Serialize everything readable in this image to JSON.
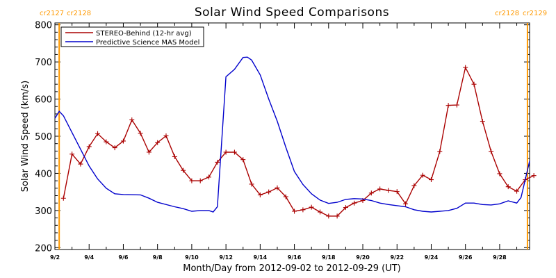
{
  "chart_data": {
    "type": "line",
    "title": "Solar Wind Speed Comparisons",
    "xlabel": "Month/Day from 2012-09-02 to 2012-09-29 (UT)",
    "ylabel": "Solar Wind Speed (km/s)",
    "xlim": [
      "2012-09-02T00:00",
      "2012-09-29T18:00"
    ],
    "ylim": [
      195,
      805
    ],
    "y_ticks": [
      200,
      300,
      400,
      500,
      600,
      700,
      800
    ],
    "x_ticks": [
      {
        "date": "2012-09-02",
        "label": "9/2"
      },
      {
        "date": "2012-09-04",
        "label": "9/4"
      },
      {
        "date": "2012-09-06",
        "label": "9/6"
      },
      {
        "date": "2012-09-08",
        "label": "9/8"
      },
      {
        "date": "2012-09-10",
        "label": "9/10"
      },
      {
        "date": "2012-09-12",
        "label": "9/12"
      },
      {
        "date": "2012-09-14",
        "label": "9/14"
      },
      {
        "date": "2012-09-16",
        "label": "9/16"
      },
      {
        "date": "2012-09-18",
        "label": "9/18"
      },
      {
        "date": "2012-09-20",
        "label": "9/20"
      },
      {
        "date": "2012-09-22",
        "label": "9/22"
      },
      {
        "date": "2012-09-24",
        "label": "9/24"
      },
      {
        "date": "2012-09-26",
        "label": "9/26"
      },
      {
        "date": "2012-09-28",
        "label": "9/28"
      }
    ],
    "grid": false,
    "legend_position": "top-left",
    "carrington_markers": [
      {
        "date": "2012-09-02T06:00",
        "left_label": "cr2127",
        "right_label": "cr2128",
        "color": "#ff9900",
        "label_side": "top-left"
      },
      {
        "date": "2012-09-29T15:00",
        "left_label": "cr2128",
        "right_label": "cr2129",
        "color": "#ff9900",
        "label_side": "top-right"
      }
    ],
    "series": [
      {
        "name": "STEREO-Behind (12-hr avg)",
        "color": "#aa0000",
        "marker": "+",
        "x": [
          "2012-09-02T12:00",
          "2012-09-03T00:00",
          "2012-09-03T12:00",
          "2012-09-04T00:00",
          "2012-09-04T12:00",
          "2012-09-05T00:00",
          "2012-09-05T12:00",
          "2012-09-06T00:00",
          "2012-09-06T12:00",
          "2012-09-07T00:00",
          "2012-09-07T12:00",
          "2012-09-08T00:00",
          "2012-09-08T12:00",
          "2012-09-09T00:00",
          "2012-09-09T12:00",
          "2012-09-10T00:00",
          "2012-09-10T12:00",
          "2012-09-11T00:00",
          "2012-09-11T12:00",
          "2012-09-12T00:00",
          "2012-09-12T12:00",
          "2012-09-13T00:00",
          "2012-09-13T12:00",
          "2012-09-14T00:00",
          "2012-09-14T12:00",
          "2012-09-15T00:00",
          "2012-09-15T12:00",
          "2012-09-16T00:00",
          "2012-09-16T12:00",
          "2012-09-17T00:00",
          "2012-09-17T12:00",
          "2012-09-18T00:00",
          "2012-09-18T12:00",
          "2012-09-19T00:00",
          "2012-09-19T12:00",
          "2012-09-20T00:00",
          "2012-09-20T12:00",
          "2012-09-21T00:00",
          "2012-09-21T12:00",
          "2012-09-22T00:00",
          "2012-09-22T12:00",
          "2012-09-23T00:00",
          "2012-09-23T12:00",
          "2012-09-24T00:00",
          "2012-09-24T12:00",
          "2012-09-25T00:00",
          "2012-09-25T12:00",
          "2012-09-26T00:00",
          "2012-09-26T12:00",
          "2012-09-27T00:00",
          "2012-09-27T12:00",
          "2012-09-28T00:00",
          "2012-09-28T12:00",
          "2012-09-29T00:00",
          "2012-09-29T12:00",
          "2012-09-30T00:00"
        ],
        "y": [
          333,
          452,
          425,
          472,
          507,
          485,
          469,
          487,
          544,
          508,
          457,
          483,
          501,
          445,
          408,
          380,
          380,
          390,
          430,
          457,
          457,
          437,
          371,
          342,
          350,
          361,
          337,
          298,
          302,
          309,
          296,
          285,
          285,
          308,
          320,
          327,
          347,
          358,
          354,
          351,
          318,
          367,
          395,
          383,
          459,
          583,
          584,
          685,
          640,
          540,
          459,
          399,
          364,
          352,
          383,
          394
        ]
      },
      {
        "name": "Predictive Science MAS Model",
        "color": "#0000cc",
        "marker": "none",
        "x": [
          "2012-09-02T00:00",
          "2012-09-02T06:00",
          "2012-09-02T12:00",
          "2012-09-03T00:00",
          "2012-09-03T12:00",
          "2012-09-04T00:00",
          "2012-09-04T12:00",
          "2012-09-05T00:00",
          "2012-09-05T12:00",
          "2012-09-06T00:00",
          "2012-09-07T00:00",
          "2012-09-07T12:00",
          "2012-09-08T00:00",
          "2012-09-09T00:00",
          "2012-09-09T12:00",
          "2012-09-10T00:00",
          "2012-09-10T12:00",
          "2012-09-11T00:00",
          "2012-09-11T06:00",
          "2012-09-11T12:00",
          "2012-09-12T00:00",
          "2012-09-12T12:00",
          "2012-09-13T00:00",
          "2012-09-13T06:00",
          "2012-09-13T12:00",
          "2012-09-14T00:00",
          "2012-09-14T12:00",
          "2012-09-15T00:00",
          "2012-09-15T12:00",
          "2012-09-16T00:00",
          "2012-09-16T12:00",
          "2012-09-17T00:00",
          "2012-09-17T12:00",
          "2012-09-18T00:00",
          "2012-09-18T12:00",
          "2012-09-19T00:00",
          "2012-09-19T12:00",
          "2012-09-20T00:00",
          "2012-09-20T12:00",
          "2012-09-21T00:00",
          "2012-09-21T12:00",
          "2012-09-22T00:00",
          "2012-09-22T12:00",
          "2012-09-23T00:00",
          "2012-09-23T12:00",
          "2012-09-24T00:00",
          "2012-09-24T12:00",
          "2012-09-25T00:00",
          "2012-09-25T12:00",
          "2012-09-26T00:00",
          "2012-09-26T12:00",
          "2012-09-27T00:00",
          "2012-09-27T12:00",
          "2012-09-28T00:00",
          "2012-09-28T12:00",
          "2012-09-29T00:00",
          "2012-09-29T06:00",
          "2012-09-29T18:00"
        ],
        "y": [
          548,
          567,
          555,
          510,
          465,
          420,
          385,
          360,
          345,
          343,
          342,
          333,
          322,
          310,
          305,
          298,
          300,
          300,
          296,
          310,
          660,
          680,
          712,
          713,
          705,
          665,
          600,
          540,
          470,
          405,
          370,
          345,
          328,
          319,
          322,
          330,
          332,
          331,
          327,
          320,
          316,
          313,
          310,
          302,
          298,
          296,
          298,
          300,
          306,
          320,
          320,
          316,
          315,
          318,
          326,
          320,
          335,
          433
        ]
      }
    ]
  }
}
